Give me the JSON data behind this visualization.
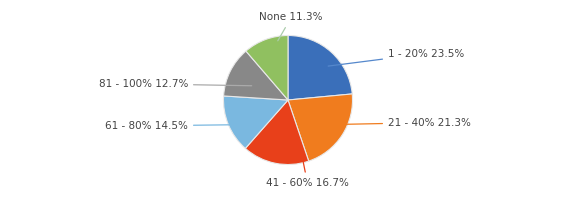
{
  "values": [
    23.5,
    21.3,
    16.7,
    14.5,
    12.7,
    11.3
  ],
  "colors": [
    "#3a6fba",
    "#f07c1e",
    "#e8401a",
    "#7ab8e0",
    "#888888",
    "#90c060"
  ],
  "label_texts": [
    "1 - 20% 23.5%",
    "21 - 40% 21.3%",
    "41 - 60% 16.7%",
    "61 - 80% 14.5%",
    "81 - 100% 12.7%",
    "None 11.3%"
  ],
  "label_colors": [
    "#5588cc",
    "#f07c1e",
    "#e8401a",
    "#7ab8e0",
    "#aaaaaa",
    "#aaccaa"
  ],
  "startangle": 90,
  "background_color": "#ffffff",
  "wedge_edge_color": "#e8e8e8",
  "wedge_linewidth": 0.8,
  "fontsize": 7.5,
  "text_color": "#444444"
}
